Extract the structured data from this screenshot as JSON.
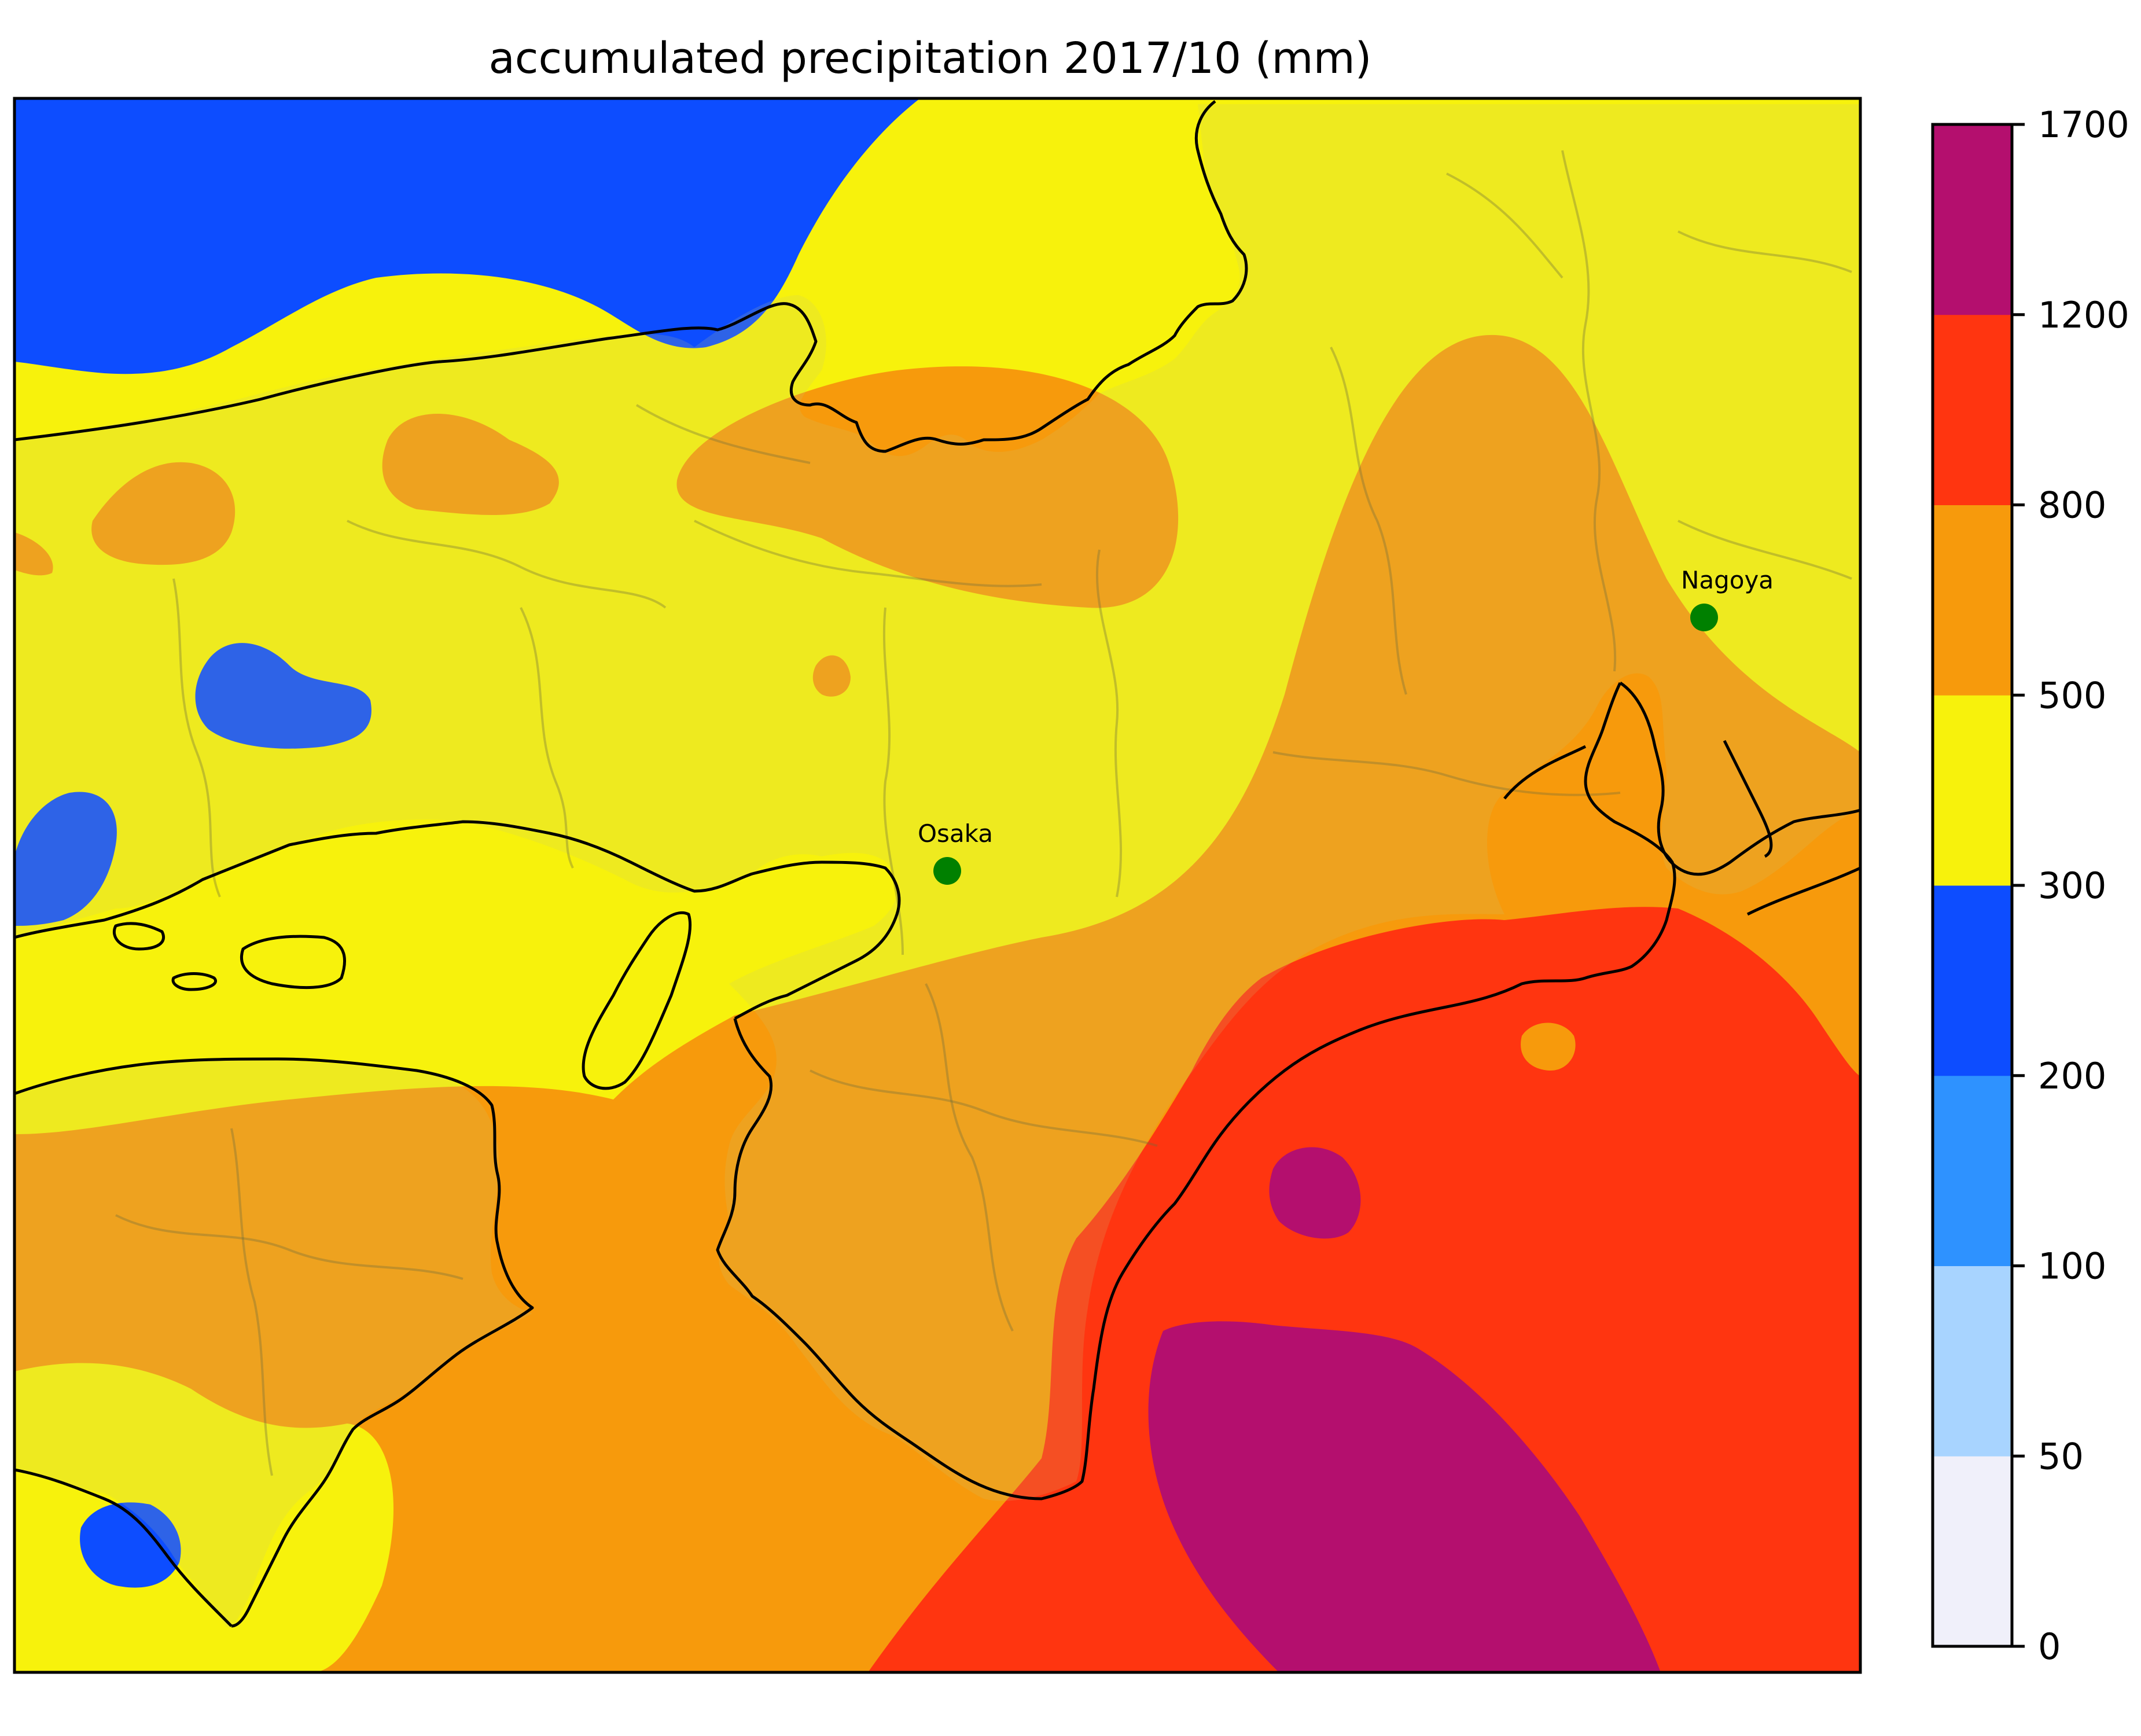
{
  "title": "accumulated precipitation 2017/10 (mm)",
  "cities": [
    {
      "name": "Osaka",
      "marker_color": "#008000"
    },
    {
      "name": "Nagoya",
      "marker_color": "#008000"
    }
  ],
  "colorbar": {
    "ticks": [
      "0",
      "50",
      "100",
      "200",
      "300",
      "500",
      "800",
      "1200",
      "1700"
    ],
    "colors": [
      "#f0f0fa",
      "#a8d4ff",
      "#2e92ff",
      "#0d4dff",
      "#f7f20c",
      "#f79a0c",
      "#ff3510",
      "#b40f6e"
    ]
  },
  "colors": {
    "coastline": "#000000",
    "land_overlay": "rgba(200,200,120,0.18)",
    "boundary": "rgba(110,110,60,0.35)"
  }
}
